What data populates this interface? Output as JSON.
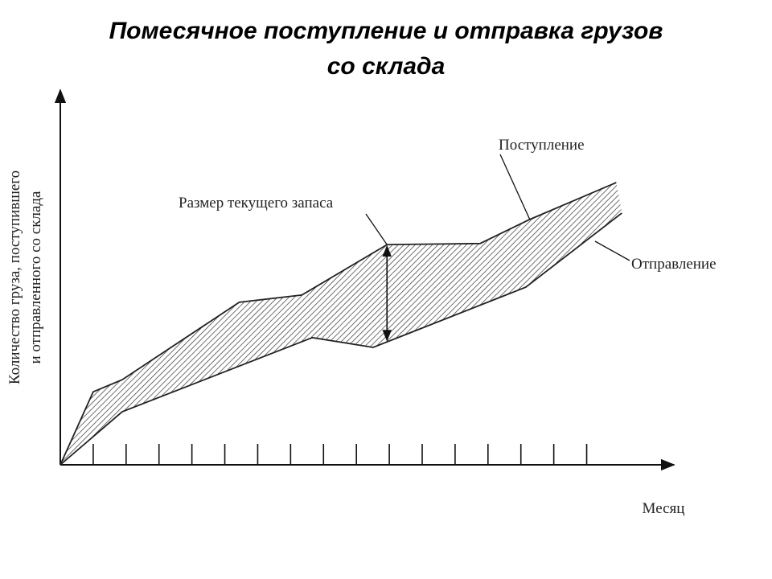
{
  "chart_data": {
    "type": "line",
    "title": [
      "Помесячное поступление и отправка грузов",
      "со склада"
    ],
    "y_label": [
      "Количество груза, поступившего",
      "и отправленного со склада"
    ],
    "x_label": "Месяц",
    "annotation": "Размер текущего запаса",
    "xlim": [
      0,
      18.7
    ],
    "ylim": [
      0,
      100
    ],
    "xticks": [
      1,
      2,
      3,
      4,
      5,
      6,
      7,
      8,
      9,
      10,
      11,
      12,
      13,
      14,
      15,
      16
    ],
    "hatched_band": true,
    "series": [
      {
        "name": "Поступление",
        "color": "#222222",
        "x": [
          0,
          1,
          1.88,
          5.44,
          7.34,
          9.93,
          12.76,
          14.27,
          16.9
        ],
        "values": [
          0,
          19.4,
          22.6,
          43.2,
          45.1,
          58.5,
          58.8,
          65.2,
          75.0
        ]
      },
      {
        "name": "Отправление",
        "color": "#222222",
        "x": [
          0,
          1.88,
          7.66,
          9.51,
          14.15,
          17.07
        ],
        "values": [
          0,
          14.1,
          33.8,
          31.2,
          47.2,
          66.9
        ]
      }
    ]
  }
}
